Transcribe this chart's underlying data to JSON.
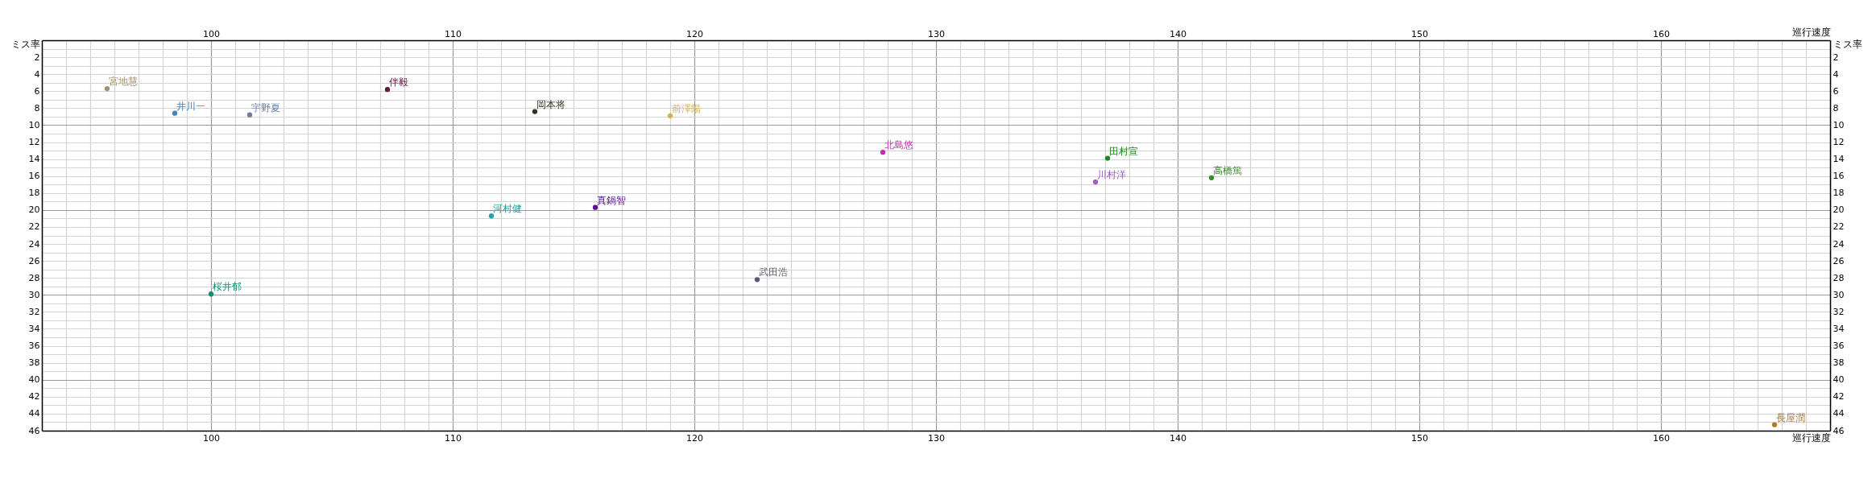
{
  "chart_data": {
    "type": "scatter",
    "xlabel": "巡行速度",
    "x2label": "巡行速度",
    "ylabel": "ミス率",
    "y2label": "ミス率",
    "xlim": [
      93,
      167
    ],
    "xticks": [
      100,
      110,
      120,
      130,
      140,
      150,
      160
    ],
    "x2lim": [
      93,
      167
    ],
    "x2ticks": [
      100,
      110,
      120,
      130,
      140,
      150,
      160
    ],
    "ylim": [
      46,
      0
    ],
    "yticks": [
      2,
      4,
      6,
      8,
      10,
      12,
      14,
      16,
      18,
      20,
      22,
      24,
      26,
      28,
      30,
      32,
      34,
      36,
      38,
      40,
      42,
      44,
      46
    ],
    "y2lim": [
      46,
      0
    ],
    "y2ticks": [
      2,
      4,
      6,
      8,
      10,
      12,
      14,
      16,
      18,
      20,
      22,
      24,
      26,
      28,
      30,
      32,
      34,
      36,
      38,
      40,
      42,
      44,
      46
    ],
    "grid": true,
    "marker": "circle",
    "series": [
      {
        "name": "宮地慧",
        "color": "#a09070",
        "x": [
          95.7
        ],
        "values": [
          5.7
        ]
      },
      {
        "name": "井川一",
        "color": "#4682b4",
        "x": [
          98.5
        ],
        "values": [
          8.6
        ]
      },
      {
        "name": "宇野夏",
        "color": "#6a7fa0",
        "x": [
          101.6
        ],
        "values": [
          8.8
        ]
      },
      {
        "name": "伴毅",
        "color": "#5a1a40",
        "x": [
          107.3
        ],
        "values": [
          5.8
        ]
      },
      {
        "name": "岡本将",
        "color": "#333322",
        "x": [
          113.4
        ],
        "values": [
          8.4
        ]
      },
      {
        "name": "前澤陽",
        "color": "#d4b050",
        "x": [
          119.0
        ],
        "values": [
          8.9
        ]
      },
      {
        "name": "北島悠",
        "color": "#c030b0",
        "x": [
          127.8
        ],
        "values": [
          13.2
        ]
      },
      {
        "name": "田村宣",
        "color": "#1a8a1a",
        "x": [
          137.1
        ],
        "values": [
          13.9
        ]
      },
      {
        "name": "川村洋",
        "color": "#9a60c0",
        "x": [
          136.6
        ],
        "values": [
          16.7
        ]
      },
      {
        "name": "高橋篤",
        "color": "#3a8a2a",
        "x": [
          141.4
        ],
        "values": [
          16.2
        ]
      },
      {
        "name": "真鍋智",
        "color": "#5a1090",
        "x": [
          115.9
        ],
        "values": [
          19.7
        ]
      },
      {
        "name": "河村健",
        "color": "#1aa8a8",
        "x": [
          111.6
        ],
        "values": [
          20.7
        ]
      },
      {
        "name": "武田浩",
        "color": "#5a5a70",
        "x": [
          122.6
        ],
        "values": [
          28.2
        ]
      },
      {
        "name": "桜井郁",
        "color": "#109070",
        "x": [
          100.0
        ],
        "values": [
          29.9
        ]
      },
      {
        "name": "長屋潤",
        "color": "#b07a20",
        "x": [
          164.7
        ],
        "values": [
          45.3
        ]
      }
    ]
  }
}
